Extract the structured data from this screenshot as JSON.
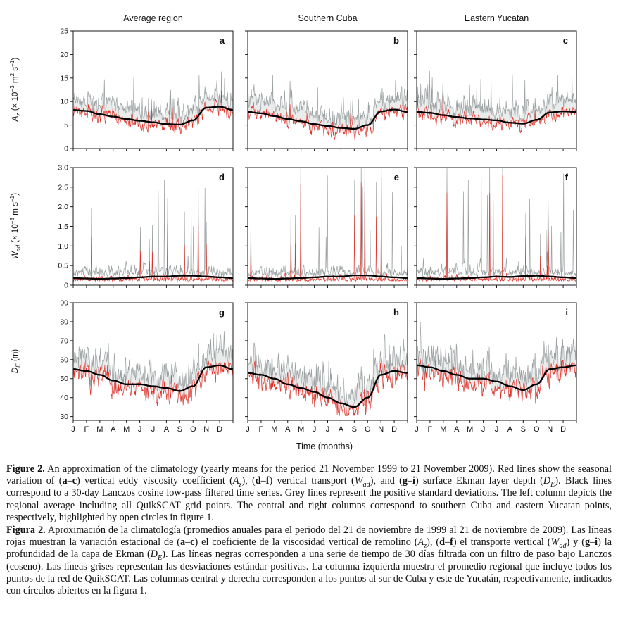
{
  "chart_data": {
    "type": "line",
    "column_titles": [
      "Average region",
      "Southern Cuba",
      "Eastern Yucatan"
    ],
    "x_axis": {
      "title": "Time (months)",
      "tick_labels": [
        "J",
        "F",
        "M",
        "A",
        "M",
        "J",
        "J",
        "A",
        "S",
        "O",
        "N",
        "D"
      ]
    },
    "colors": {
      "red": "#e03028",
      "grey": "#9aa0a1",
      "black": "#000000",
      "band": "#d9dddd",
      "frame": "#1a1a1a"
    },
    "legend": {
      "red": "seasonal variation (yearly means 21 Nov 1999 - 21 Nov 2009)",
      "black": "30-day Lanczos cosine low-pass filtered time series",
      "grey": "positive standard deviations"
    },
    "rows": [
      {
        "quantity": "Az",
        "ylabel_runs": [
          {
            "t": "A",
            "i": true
          },
          {
            "t": "z",
            "i": true,
            "sub": true
          },
          {
            "t": " (× 10"
          },
          {
            "t": "−3",
            "sup": true
          },
          {
            "t": " m"
          },
          {
            "t": "2",
            "sup": true
          },
          {
            "t": " s"
          },
          {
            "t": "−1",
            "sup": true
          },
          {
            "t": ")"
          }
        ],
        "ylim": [
          0,
          25
        ],
        "yticks": [
          "0",
          "5",
          "10",
          "15",
          "20",
          "25"
        ],
        "panels": [
          {
            "letter": "a",
            "region": "Average region",
            "black_monthly": [
              8.2,
              8.0,
              7.3,
              6.8,
              6.3,
              5.9,
              5.6,
              5.2,
              5.1,
              6.0,
              8.7,
              8.9
            ]
          },
          {
            "letter": "b",
            "region": "Southern Cuba",
            "black_monthly": [
              7.8,
              7.5,
              6.9,
              6.3,
              5.8,
              5.2,
              4.8,
              4.4,
              4.2,
              5.0,
              7.9,
              8.3
            ]
          },
          {
            "letter": "c",
            "region": "Eastern Yucatan",
            "black_monthly": [
              7.8,
              7.6,
              7.1,
              6.7,
              6.4,
              6.2,
              6.0,
              5.5,
              5.3,
              6.1,
              7.7,
              7.9
            ]
          }
        ]
      },
      {
        "quantity": "Wad",
        "ylabel_runs": [
          {
            "t": "W",
            "i": true
          },
          {
            "t": "ad",
            "i": true,
            "sub": true
          },
          {
            "t": " (× 10"
          },
          {
            "t": "−3",
            "sup": true
          },
          {
            "t": " m s"
          },
          {
            "t": "−1",
            "sup": true
          },
          {
            "t": ")"
          }
        ],
        "ylim": [
          0,
          3
        ],
        "yticks": [
          "0",
          "0.5",
          "1.0",
          "1.5",
          "2.0",
          "2.5",
          "3.0"
        ],
        "panels": [
          {
            "letter": "d",
            "region": "Average region",
            "black_monthly": [
              0.18,
              0.17,
              0.16,
              0.17,
              0.18,
              0.2,
              0.22,
              0.22,
              0.24,
              0.24,
              0.22,
              0.2
            ],
            "spike_weights": [
              0.2,
              0.2,
              0.3,
              0.6,
              0.6,
              2.2,
              2.4,
              0.8,
              2.6,
              3.0,
              1.0,
              0.4
            ],
            "spike_max": 1.8
          },
          {
            "letter": "e",
            "region": "Southern Cuba",
            "black_monthly": [
              0.18,
              0.17,
              0.16,
              0.17,
              0.18,
              0.2,
              0.22,
              0.22,
              0.25,
              0.25,
              0.22,
              0.2
            ],
            "spike_weights": [
              0.5,
              0.4,
              0.5,
              1.0,
              1.0,
              3.0,
              1.2,
              1.0,
              3.0,
              3.0,
              1.5,
              0.8
            ],
            "spike_max": 3.0
          },
          {
            "letter": "f",
            "region": "Eastern Yucatan",
            "black_monthly": [
              0.18,
              0.17,
              0.16,
              0.17,
              0.18,
              0.2,
              0.22,
              0.21,
              0.23,
              0.24,
              0.22,
              0.2
            ],
            "spike_weights": [
              0.3,
              0.3,
              0.5,
              1.0,
              1.0,
              2.6,
              2.4,
              0.8,
              1.0,
              3.0,
              2.6,
              1.0
            ],
            "spike_max": 2.8
          }
        ]
      },
      {
        "quantity": "DE",
        "ylabel_runs": [
          {
            "t": "D",
            "i": true
          },
          {
            "t": "E",
            "i": true,
            "sub": true
          },
          {
            "t": " (m)"
          }
        ],
        "ylim": [
          28,
          90
        ],
        "yticks": [
          "30",
          "40",
          "50",
          "60",
          "70",
          "80",
          "90"
        ],
        "panels": [
          {
            "letter": "g",
            "region": "Average region",
            "black_monthly": [
              55,
              54,
              52,
              49,
              47,
              47,
              46,
              45,
              43.5,
              46,
              56,
              57
            ]
          },
          {
            "letter": "h",
            "region": "Southern Cuba",
            "black_monthly": [
              53,
              52,
              50,
              47,
              45,
              43,
              40,
              37,
              35,
              40,
              52,
              54
            ]
          },
          {
            "letter": "i",
            "region": "Eastern Yucatan",
            "black_monthly": [
              57,
              56,
              54,
              52,
              50,
              50,
              48.5,
              46,
              44,
              47,
              55,
              56
            ]
          }
        ]
      }
    ]
  },
  "caption": {
    "en": [
      {
        "t": "Figure 2.",
        "b": true
      },
      {
        "t": " An approximation of the climatology (yearly means for the period 21 November 1999 to 21 November 2009). Red lines show the seasonal variation of ("
      },
      {
        "t": "a",
        "b": true
      },
      {
        "t": "–"
      },
      {
        "t": "c",
        "b": true
      },
      {
        "t": ") vertical eddy viscosity coefficient ("
      },
      {
        "t": "A",
        "i": true
      },
      {
        "t": "z",
        "i": true,
        "sub": true
      },
      {
        "t": "), ("
      },
      {
        "t": "d",
        "b": true
      },
      {
        "t": "–"
      },
      {
        "t": "f",
        "b": true
      },
      {
        "t": ") vertical transport ("
      },
      {
        "t": "W",
        "i": true
      },
      {
        "t": "ad",
        "i": true,
        "sub": true
      },
      {
        "t": "), and ("
      },
      {
        "t": "g",
        "b": true
      },
      {
        "t": "–"
      },
      {
        "t": "i",
        "b": true
      },
      {
        "t": ") surface Ekman layer depth ("
      },
      {
        "t": "D",
        "i": true
      },
      {
        "t": "E",
        "i": true,
        "sub": true
      },
      {
        "t": "). Black lines correspond to a 30-day Lanczos cosine low-pass filtered time series. Grey lines represent the positive standard deviations. The left column depicts the regional average including all QuikSCAT grid points. The central and right columns correspond to southern Cuba and eastern Yucatan points, respectively, highlighted by open circles in figure 1."
      }
    ],
    "es": [
      {
        "t": "Figura 2.",
        "b": true
      },
      {
        "t": " Aproximación de la climatología (promedios anuales para el periodo del 21 de noviembre de 1999 al 21 de noviembre de 2009). Las líneas rojas muestran la variación estacional de ("
      },
      {
        "t": "a",
        "b": true
      },
      {
        "t": "–"
      },
      {
        "t": "c",
        "b": true
      },
      {
        "t": ") el coeficiente de la viscosidad vertical de remolino ("
      },
      {
        "t": "A",
        "i": true
      },
      {
        "t": "z",
        "i": true,
        "sub": true
      },
      {
        "t": "), ("
      },
      {
        "t": "d",
        "b": true
      },
      {
        "t": "–"
      },
      {
        "t": "f",
        "b": true
      },
      {
        "t": ") el transporte vertical ("
      },
      {
        "t": "W",
        "i": true
      },
      {
        "t": "ad",
        "i": true,
        "sub": true
      },
      {
        "t": ") y ("
      },
      {
        "t": "g",
        "b": true
      },
      {
        "t": "–"
      },
      {
        "t": "i",
        "b": true
      },
      {
        "t": ") la profundidad de la capa de Ekman ("
      },
      {
        "t": "D",
        "i": true
      },
      {
        "t": "E",
        "i": true,
        "sub": true
      },
      {
        "t": "). Las líneas negras corresponden a una serie de tiempo de 30 días filtrada con un filtro de paso bajo Lanczos (coseno). Las líneas grises representan las desviaciones estándar positivas. La columna izquierda muestra el promedio regional que incluye todos los puntos de la red de QuikSCAT. Las columnas central y derecha corresponden a los puntos al sur de Cuba y este de Yucatán, respectivamente, indicados con círculos abiertos en la figura 1."
      }
    ]
  }
}
